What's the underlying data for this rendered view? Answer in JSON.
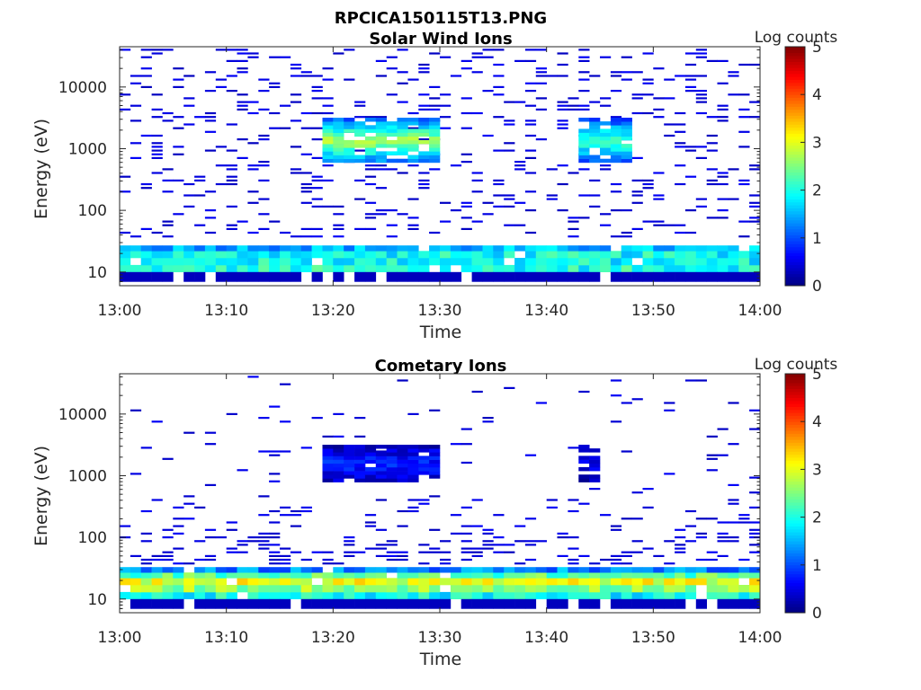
{
  "figure": {
    "filename": "RPCICA150115T13.PNG"
  },
  "chart_data": [
    {
      "type": "heatmap",
      "title": "Solar Wind Ions",
      "xlabel": "Time",
      "ylabel": "Energy (eV)",
      "x_ticks": [
        "13:00",
        "13:10",
        "13:20",
        "13:30",
        "13:40",
        "13:50",
        "14:00"
      ],
      "y_ticks": [
        "10",
        "100",
        "1000",
        "10000"
      ],
      "y_scale": "log",
      "ylim": [
        6,
        45000
      ],
      "colorbar": {
        "label": "Log counts",
        "ticks": [
          "0",
          "1",
          "2",
          "3",
          "4",
          "5"
        ],
        "range": [
          0,
          5
        ],
        "colormap": "jet"
      },
      "time_range_min": [
        0,
        60
      ],
      "grid": false,
      "bands": [
        {
          "e_min": 10,
          "e_max": 13,
          "typical": 2.0
        },
        {
          "e_min": 13,
          "e_max": 17,
          "typical": 1.9
        },
        {
          "e_min": 17,
          "e_max": 22,
          "typical": 1.9
        },
        {
          "e_min": 22,
          "e_max": 27,
          "typical": 1.5
        }
      ],
      "features": [
        {
          "t_start": 19.0,
          "t_end": 30.0,
          "e_min": 600,
          "e_max": 3000,
          "peak": 2.8
        },
        {
          "t_start": 43.0,
          "t_end": 47.5,
          "e_min": 600,
          "e_max": 3000,
          "peak": 2.3
        }
      ]
    },
    {
      "type": "heatmap",
      "title": "Cometary Ions",
      "xlabel": "Time",
      "ylabel": "Energy (eV)",
      "x_ticks": [
        "13:00",
        "13:10",
        "13:20",
        "13:30",
        "13:40",
        "13:50",
        "14:00"
      ],
      "y_ticks": [
        "10",
        "100",
        "1000",
        "10000"
      ],
      "y_scale": "log",
      "ylim": [
        6,
        45000
      ],
      "colorbar": {
        "label": "Log counts",
        "ticks": [
          "0",
          "1",
          "2",
          "3",
          "4",
          "5"
        ],
        "range": [
          0,
          5
        ],
        "colormap": "jet"
      },
      "time_range_min": [
        0,
        60
      ],
      "grid": false,
      "bands": [
        {
          "e_min": 10,
          "e_max": 13,
          "typical": 1.9
        },
        {
          "e_min": 13,
          "e_max": 17,
          "typical": 2.6
        },
        {
          "e_min": 17,
          "e_max": 22,
          "typical": 3.0
        },
        {
          "e_min": 22,
          "e_max": 27,
          "typical": 2.3
        },
        {
          "e_min": 27,
          "e_max": 33,
          "typical": 1.3
        }
      ],
      "features": [
        {
          "t_start": 19.0,
          "t_end": 30.0,
          "e_min": 800,
          "e_max": 3000,
          "peak": 0.8
        },
        {
          "t_start": 43.0,
          "t_end": 44.5,
          "e_min": 800,
          "e_max": 3000,
          "peak": 0.5
        }
      ]
    }
  ]
}
